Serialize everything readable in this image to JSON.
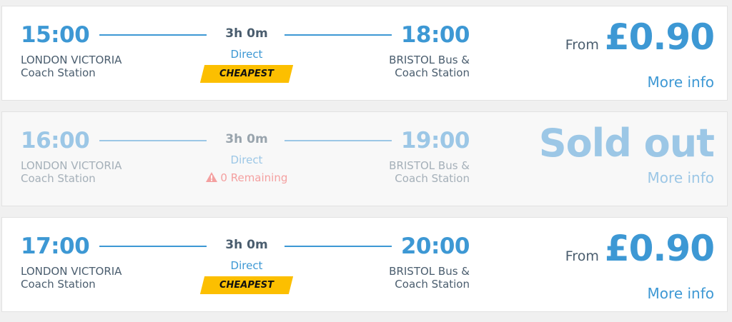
{
  "journeys": [
    {
      "departure_time": "15:00",
      "departure_station": "LONDON VICTORIA Coach Station",
      "duration": "3h 0m",
      "type": "Direct",
      "badge": "CHEAPEST",
      "arrival_time": "18:00",
      "arrival_station": "BRISTOL Bus & Coach Station",
      "price_prefix": "From",
      "price": "£0.90",
      "more_info": "More info"
    },
    {
      "departure_time": "16:00",
      "departure_station": "LONDON VICTORIA Coach Station",
      "duration": "3h 0m",
      "type": "Direct",
      "remaining": "0 Remaining",
      "arrival_time": "19:00",
      "arrival_station": "BRISTOL Bus & Coach Station",
      "status": "Sold out",
      "more_info": "More info"
    },
    {
      "departure_time": "17:00",
      "departure_station": "LONDON VICTORIA Coach Station",
      "duration": "3h 0m",
      "type": "Direct",
      "badge": "CHEAPEST",
      "arrival_time": "20:00",
      "arrival_station": "BRISTOL Bus & Coach Station",
      "price_prefix": "From",
      "price": "£0.90",
      "more_info": "More info"
    }
  ],
  "colors": {
    "accent": "#3d98d4",
    "badge": "#fcbf00",
    "warning": "#f4a0a0",
    "sold_out": "#9cc7e6"
  },
  "icons": {
    "warning": "warning-triangle-icon"
  }
}
